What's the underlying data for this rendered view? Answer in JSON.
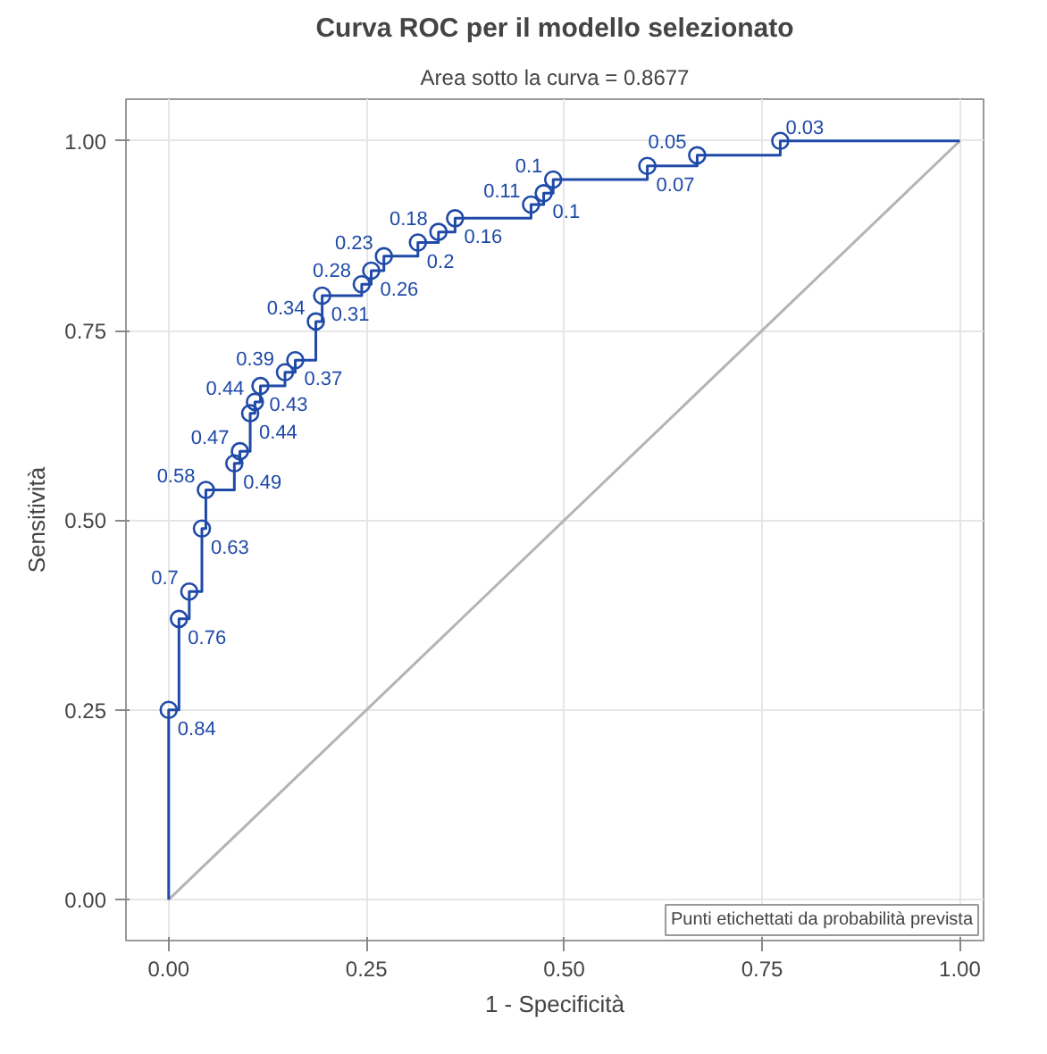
{
  "chart_data": {
    "type": "step",
    "title": "Curva ROC per il modello selezionato",
    "subtitle": "Area sotto la curva = 0.8677",
    "xlabel": "1 - Specificità",
    "ylabel": "Sensitività",
    "series": [
      {
        "color": "#1f4aa8",
        "marker": "none",
        "x": [
          0,
          0,
          0.013,
          0.026,
          0.042,
          0.047,
          0.083,
          0.09,
          0.103,
          0.109,
          0.116,
          0.147,
          0.16,
          0.186,
          0.194,
          0.244,
          0.256,
          0.272,
          0.315,
          0.341,
          0.362,
          0.458,
          0.474,
          0.486,
          0.605,
          0.668,
          0.773,
          1
        ],
        "values": [
          0,
          0.25,
          0.37,
          0.406,
          0.489,
          0.54,
          0.575,
          0.591,
          0.641,
          0.656,
          0.677,
          0.695,
          0.711,
          0.762,
          0.796,
          0.811,
          0.829,
          0.848,
          0.866,
          0.88,
          0.898,
          0.916,
          0.931,
          0.949,
          0.967,
          0.981,
          1.0,
          1.0
        ]
      },
      {
        "type": "scatter",
        "color": "#1f4aa8",
        "marker": "circle",
        "x": [
          0,
          0.013,
          0.026,
          0.042,
          0.047,
          0.083,
          0.09,
          0.103,
          0.109,
          0.116,
          0.147,
          0.16,
          0.186,
          0.194,
          0.244,
          0.256,
          0.272,
          0.315,
          0.341,
          0.362,
          0.458,
          0.474,
          0.486,
          0.605,
          0.668,
          0.773
        ],
        "values": [
          0.25,
          0.37,
          0.406,
          0.489,
          0.54,
          0.575,
          0.591,
          0.641,
          0.656,
          0.677,
          0.695,
          0.711,
          0.762,
          0.796,
          0.811,
          0.829,
          0.848,
          0.866,
          0.88,
          0.898,
          0.916,
          0.931,
          0.949,
          0.967,
          0.981,
          1.0
        ]
      },
      {
        "type": "line",
        "color": "#b4b4b4",
        "marker": "none",
        "x": [
          0,
          1
        ],
        "values": [
          0,
          1
        ]
      }
    ],
    "xlim": [
      -0.054,
      1.03
    ],
    "ylim": [
      -0.054,
      1.055
    ],
    "xticks": [
      {
        "value": 0,
        "label": "0.00"
      },
      {
        "value": 0.25,
        "label": "0.25"
      },
      {
        "value": 0.5,
        "label": "0.50"
      },
      {
        "value": 0.75,
        "label": "0.75"
      },
      {
        "value": 1,
        "label": "1.00"
      }
    ],
    "yticks": [
      {
        "value": 0,
        "label": "0.00"
      },
      {
        "value": 0.25,
        "label": "0.25"
      },
      {
        "value": 0.5,
        "label": "0.50"
      },
      {
        "value": 0.75,
        "label": "0.75"
      },
      {
        "value": 1,
        "label": "1.00"
      }
    ],
    "grid": true,
    "annotations": [
      "Punti etichettati da probabilità prevista",
      {
        "text": "0.84",
        "x": 0,
        "y": 0.25
      },
      {
        "text": "0.76",
        "x": 0.013,
        "y": 0.37
      },
      {
        "text": "0.7",
        "x": 0.026,
        "y": 0.406
      },
      {
        "text": "0.63",
        "x": 0.042,
        "y": 0.489
      },
      {
        "text": "0.58",
        "x": 0.047,
        "y": 0.54
      },
      {
        "text": "0.49",
        "x": 0.083,
        "y": 0.575
      },
      {
        "text": "0.47",
        "x": 0.09,
        "y": 0.591
      },
      {
        "text": "0.44",
        "x": 0.103,
        "y": 0.641
      },
      {
        "text": "0.44",
        "x": 0.109,
        "y": 0.656
      },
      {
        "text": "0.43",
        "x": 0.116,
        "y": 0.677
      },
      {
        "text": "0.39",
        "x": 0.147,
        "y": 0.695
      },
      {
        "text": "0.37",
        "x": 0.16,
        "y": 0.711
      },
      {
        "text": "0.34",
        "x": 0.186,
        "y": 0.762
      },
      {
        "text": "0.31",
        "x": 0.194,
        "y": 0.796
      },
      {
        "text": "0.28",
        "x": 0.244,
        "y": 0.811
      },
      {
        "text": "0.26",
        "x": 0.256,
        "y": 0.829
      },
      {
        "text": "0.23",
        "x": 0.272,
        "y": 0.848
      },
      {
        "text": "0.2",
        "x": 0.315,
        "y": 0.866
      },
      {
        "text": "0.18",
        "x": 0.341,
        "y": 0.88
      },
      {
        "text": "0.16",
        "x": 0.362,
        "y": 0.898
      },
      {
        "text": "0.11",
        "x": 0.458,
        "y": 0.916
      },
      {
        "text": "0.1",
        "x": 0.474,
        "y": 0.931
      },
      {
        "text": "0.1",
        "x": 0.486,
        "y": 0.949
      },
      {
        "text": "0.07",
        "x": 0.605,
        "y": 0.967
      },
      {
        "text": "0.05",
        "x": 0.668,
        "y": 0.981
      },
      {
        "text": "0.03",
        "x": 0.773,
        "y": 1.0
      }
    ]
  }
}
